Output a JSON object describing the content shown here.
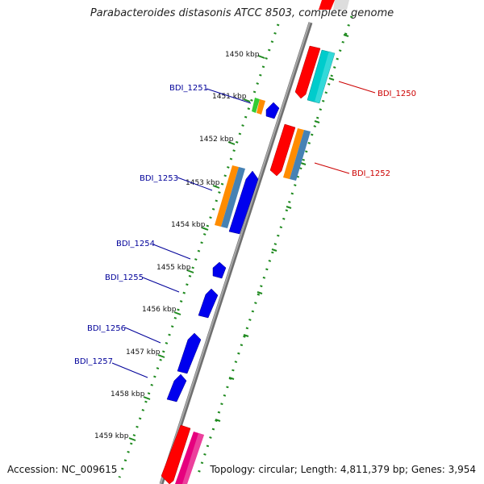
{
  "title": "Parabacteroides distasonis ATCC 8503, complete genome",
  "accession": "Accession: NC_009615",
  "summary": "Topology: circular; Length: 4,811,379 bp; Genes: 3,954",
  "scale": [
    "1450 kbp",
    "1451 kbp",
    "1452 kbp",
    "1453 kbp",
    "1454 kbp",
    "1455 kbp",
    "1456 kbp",
    "1457 kbp",
    "1458 kbp",
    "1459 kbp"
  ],
  "genes": [
    {
      "id": "BDI_1250",
      "strand": "forward",
      "color": "#cc0000"
    },
    {
      "id": "BDI_1251",
      "strand": "reverse",
      "color": "#000099"
    },
    {
      "id": "BDI_1252",
      "strand": "forward",
      "color": "#cc0000"
    },
    {
      "id": "BDI_1253",
      "strand": "reverse",
      "color": "#000099"
    },
    {
      "id": "BDI_1254",
      "strand": "reverse",
      "color": "#000099"
    },
    {
      "id": "BDI_1255",
      "strand": "reverse",
      "color": "#000099"
    },
    {
      "id": "BDI_1256",
      "strand": "reverse",
      "color": "#000099"
    },
    {
      "id": "BDI_1257",
      "strand": "reverse",
      "color": "#000099"
    }
  ],
  "colors": {
    "backbone": "#8a8a8a",
    "dots": "#1f8a1f",
    "forward_cds": "#ff0000",
    "reverse_cds": "#0000ee",
    "cyan_feature": "#00cccc",
    "orange_feature": "#ff8c00",
    "steel_feature": "#4682b4",
    "pink_feature": "#e6007e",
    "green_feature": "#33cc33"
  }
}
